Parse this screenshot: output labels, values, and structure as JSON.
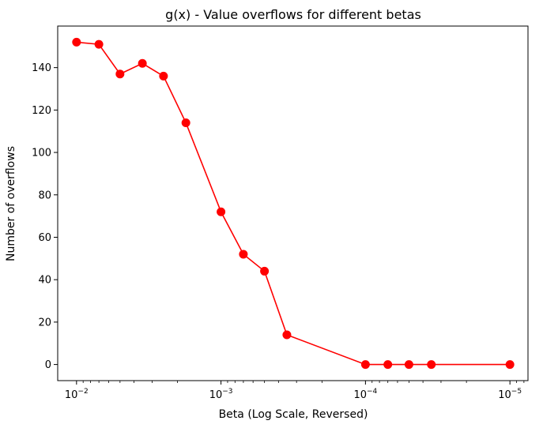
{
  "chart_data": {
    "type": "line",
    "title": "g(x) - Value overflows for different betas",
    "xlabel": "Beta (Log Scale, Reversed)",
    "ylabel": "Number of overflows",
    "x_scale": "log",
    "x_reversed": true,
    "xlim": [
      0.0135,
      7.5e-06
    ],
    "ylim": [
      -7.6,
      159.6
    ],
    "grid": false,
    "x_ticks": [
      {
        "value": 0.01,
        "base": "10",
        "exp": "−2"
      },
      {
        "value": 0.001,
        "base": "10",
        "exp": "−3"
      },
      {
        "value": 0.0001,
        "base": "10",
        "exp": "−4"
      },
      {
        "value": 1e-05,
        "base": "10",
        "exp": "−5"
      }
    ],
    "y_ticks": [
      {
        "value": 0,
        "label": "0"
      },
      {
        "value": 20,
        "label": "20"
      },
      {
        "value": 40,
        "label": "40"
      },
      {
        "value": 60,
        "label": "60"
      },
      {
        "value": 80,
        "label": "80"
      },
      {
        "value": 100,
        "label": "100"
      },
      {
        "value": 120,
        "label": "120"
      },
      {
        "value": 140,
        "label": "140"
      }
    ],
    "series": [
      {
        "color": "#ff0000",
        "marker": "circle",
        "x": [
          0.01,
          0.007,
          0.005,
          0.0035,
          0.0025,
          0.00175,
          0.001,
          0.0007,
          0.0005,
          0.00035,
          0.0001,
          7e-05,
          5e-05,
          3.5e-05,
          1e-05
        ],
        "y": [
          152,
          151,
          137,
          142,
          136,
          114,
          72,
          52,
          44,
          14,
          0,
          0,
          0,
          0,
          0
        ]
      }
    ]
  }
}
